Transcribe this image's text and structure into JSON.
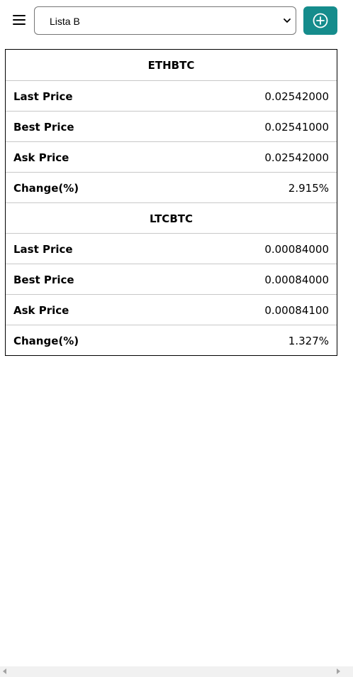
{
  "toolbar": {
    "menu_icon": "hamburger-menu-icon",
    "selected_list": "Lista B",
    "add_icon": "plus-circle-icon",
    "add_button_color": "#158c8c"
  },
  "tickers": [
    {
      "symbol": "ETHBTC",
      "rows": [
        {
          "label": "Last Price",
          "value": "0.02542000"
        },
        {
          "label": "Best Price",
          "value": "0.02541000"
        },
        {
          "label": "Ask Price",
          "value": "0.02542000"
        },
        {
          "label": "Change(%)",
          "value": "2.915%"
        }
      ]
    },
    {
      "symbol": "LTCBTC",
      "rows": [
        {
          "label": "Last Price",
          "value": "0.00084000"
        },
        {
          "label": "Best Price",
          "value": "0.00084000"
        },
        {
          "label": "Ask Price",
          "value": "0.00084100"
        },
        {
          "label": "Change(%)",
          "value": "1.327%"
        }
      ]
    }
  ]
}
